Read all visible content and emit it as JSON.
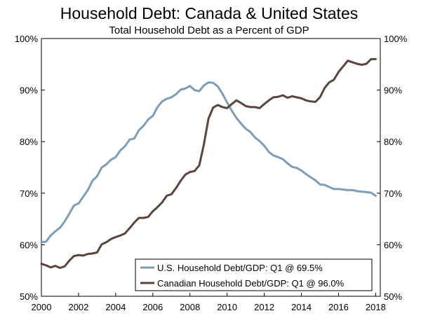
{
  "chart_data": {
    "type": "line",
    "title": "Household Debt: Canada & United States",
    "subtitle": "Total Household Debt as a Percent of GDP",
    "xlabel": "",
    "ylabel": "",
    "xlim": [
      2000,
      2018.25
    ],
    "ylim": [
      50,
      100
    ],
    "x_ticks": [
      2000,
      2002,
      2004,
      2006,
      2008,
      2010,
      2012,
      2014,
      2016,
      2018
    ],
    "x_tick_labels": [
      "2000",
      "2002",
      "2004",
      "2006",
      "2008",
      "2010",
      "2012",
      "2014",
      "2016",
      "2018"
    ],
    "y_ticks": [
      50,
      60,
      70,
      80,
      90,
      100
    ],
    "y_tick_labels_left": [
      "50%",
      "60%",
      "70%",
      "80%",
      "90%",
      "100%"
    ],
    "y_tick_labels_right": [
      "50%",
      "60%",
      "70%",
      "80%",
      "90%",
      "100%"
    ],
    "grid": false,
    "legend_position": "bottom-right",
    "series": [
      {
        "name": "U.S. Household Debt/GDP: Q1 @ 69.5%",
        "color": "#7d9cb5",
        "points": [
          [
            2000.0,
            60.5
          ],
          [
            2000.25,
            60.6
          ],
          [
            2000.5,
            61.8
          ],
          [
            2000.75,
            62.6
          ],
          [
            2001.0,
            63.3
          ],
          [
            2001.25,
            64.5
          ],
          [
            2001.5,
            66.0
          ],
          [
            2001.75,
            67.6
          ],
          [
            2002.0,
            68.0
          ],
          [
            2002.25,
            69.3
          ],
          [
            2002.5,
            70.6
          ],
          [
            2002.75,
            72.4
          ],
          [
            2003.0,
            73.3
          ],
          [
            2003.25,
            75.0
          ],
          [
            2003.5,
            75.6
          ],
          [
            2003.75,
            76.5
          ],
          [
            2004.0,
            77.0
          ],
          [
            2004.25,
            78.3
          ],
          [
            2004.5,
            79.1
          ],
          [
            2004.75,
            80.4
          ],
          [
            2005.0,
            80.6
          ],
          [
            2005.25,
            82.2
          ],
          [
            2005.5,
            83.1
          ],
          [
            2005.75,
            84.3
          ],
          [
            2006.0,
            85.0
          ],
          [
            2006.25,
            86.7
          ],
          [
            2006.5,
            87.8
          ],
          [
            2006.75,
            88.3
          ],
          [
            2007.0,
            88.6
          ],
          [
            2007.25,
            89.2
          ],
          [
            2007.5,
            90.1
          ],
          [
            2007.75,
            90.3
          ],
          [
            2008.0,
            90.8
          ],
          [
            2008.25,
            90.0
          ],
          [
            2008.5,
            89.8
          ],
          [
            2008.75,
            90.9
          ],
          [
            2009.0,
            91.5
          ],
          [
            2009.25,
            91.4
          ],
          [
            2009.5,
            90.7
          ],
          [
            2009.75,
            89.3
          ],
          [
            2010.0,
            87.6
          ],
          [
            2010.25,
            86.0
          ],
          [
            2010.5,
            84.6
          ],
          [
            2010.75,
            83.5
          ],
          [
            2011.0,
            82.5
          ],
          [
            2011.25,
            81.9
          ],
          [
            2011.5,
            80.8
          ],
          [
            2011.75,
            80.1
          ],
          [
            2012.0,
            79.2
          ],
          [
            2012.25,
            78.0
          ],
          [
            2012.5,
            77.3
          ],
          [
            2012.75,
            77.0
          ],
          [
            2013.0,
            76.6
          ],
          [
            2013.25,
            75.8
          ],
          [
            2013.5,
            75.1
          ],
          [
            2013.75,
            74.9
          ],
          [
            2014.0,
            74.4
          ],
          [
            2014.25,
            73.7
          ],
          [
            2014.5,
            73.1
          ],
          [
            2014.75,
            72.5
          ],
          [
            2015.0,
            71.7
          ],
          [
            2015.25,
            71.6
          ],
          [
            2015.5,
            71.2
          ],
          [
            2015.75,
            70.8
          ],
          [
            2016.0,
            70.8
          ],
          [
            2016.25,
            70.7
          ],
          [
            2016.5,
            70.6
          ],
          [
            2016.75,
            70.6
          ],
          [
            2017.0,
            70.4
          ],
          [
            2017.25,
            70.3
          ],
          [
            2017.5,
            70.2
          ],
          [
            2017.75,
            70.1
          ],
          [
            2018.0,
            69.5
          ]
        ]
      },
      {
        "name": "Canadian Household Debt/GDP: Q1 @ 96.0%",
        "color": "#5a443d",
        "points": [
          [
            2000.0,
            56.3
          ],
          [
            2000.25,
            56.0
          ],
          [
            2000.5,
            55.6
          ],
          [
            2000.75,
            55.9
          ],
          [
            2001.0,
            55.5
          ],
          [
            2001.25,
            55.8
          ],
          [
            2001.5,
            56.9
          ],
          [
            2001.75,
            57.8
          ],
          [
            2002.0,
            58.0
          ],
          [
            2002.25,
            57.9
          ],
          [
            2002.5,
            58.2
          ],
          [
            2002.75,
            58.3
          ],
          [
            2003.0,
            58.5
          ],
          [
            2003.25,
            60.1
          ],
          [
            2003.5,
            60.5
          ],
          [
            2003.75,
            61.1
          ],
          [
            2004.0,
            61.5
          ],
          [
            2004.25,
            61.8
          ],
          [
            2004.5,
            62.2
          ],
          [
            2004.75,
            63.2
          ],
          [
            2005.0,
            64.3
          ],
          [
            2005.25,
            65.2
          ],
          [
            2005.5,
            65.2
          ],
          [
            2005.75,
            65.4
          ],
          [
            2006.0,
            66.5
          ],
          [
            2006.25,
            67.3
          ],
          [
            2006.5,
            68.2
          ],
          [
            2006.75,
            69.5
          ],
          [
            2007.0,
            69.8
          ],
          [
            2007.25,
            71.0
          ],
          [
            2007.5,
            72.4
          ],
          [
            2007.75,
            73.6
          ],
          [
            2008.0,
            74.1
          ],
          [
            2008.25,
            74.3
          ],
          [
            2008.5,
            75.4
          ],
          [
            2008.75,
            79.5
          ],
          [
            2009.0,
            84.5
          ],
          [
            2009.25,
            86.6
          ],
          [
            2009.5,
            87.1
          ],
          [
            2009.75,
            86.7
          ],
          [
            2010.0,
            86.5
          ],
          [
            2010.25,
            87.3
          ],
          [
            2010.5,
            88.0
          ],
          [
            2010.75,
            87.5
          ],
          [
            2011.0,
            86.9
          ],
          [
            2011.25,
            86.7
          ],
          [
            2011.5,
            86.7
          ],
          [
            2011.75,
            86.5
          ],
          [
            2012.0,
            87.3
          ],
          [
            2012.25,
            88.0
          ],
          [
            2012.5,
            88.6
          ],
          [
            2012.75,
            88.7
          ],
          [
            2013.0,
            89.0
          ],
          [
            2013.25,
            88.5
          ],
          [
            2013.5,
            88.8
          ],
          [
            2013.75,
            88.6
          ],
          [
            2014.0,
            88.4
          ],
          [
            2014.25,
            88.0
          ],
          [
            2014.5,
            87.8
          ],
          [
            2014.75,
            87.7
          ],
          [
            2015.0,
            88.6
          ],
          [
            2015.25,
            90.4
          ],
          [
            2015.5,
            91.5
          ],
          [
            2015.75,
            92.0
          ],
          [
            2016.0,
            93.5
          ],
          [
            2016.25,
            94.6
          ],
          [
            2016.5,
            95.7
          ],
          [
            2016.75,
            95.4
          ],
          [
            2017.0,
            95.1
          ],
          [
            2017.25,
            94.9
          ],
          [
            2017.5,
            95.1
          ],
          [
            2017.75,
            96.0
          ],
          [
            2018.0,
            96.0
          ]
        ]
      }
    ]
  }
}
